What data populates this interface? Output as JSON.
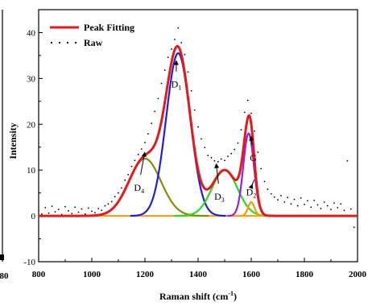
{
  "chart_data": {
    "type": "line",
    "xlabel": "Raman shift (cm",
    "xlabel_sup": "-1",
    "xlabel_close": ")",
    "ylabel": "Intensity",
    "xlim": [
      800,
      2000
    ],
    "ylim": [
      -10,
      45
    ],
    "xticks": [
      800,
      1000,
      1200,
      1400,
      1600,
      1800,
      2000
    ],
    "yticks": [
      -10,
      0,
      10,
      20,
      30,
      40
    ],
    "cut_left_label": "80",
    "legend": {
      "placement": "top-left",
      "items": [
        {
          "label": "Peak Fitting",
          "style": "line",
          "color": "#e31a1c"
        },
        {
          "label": "Raw",
          "style": "dots",
          "color": "#000000"
        }
      ]
    },
    "peaks": [
      {
        "name": "D4",
        "main": "D",
        "sub": "4",
        "center": 1200,
        "height": 12.5,
        "width": 60,
        "color": "#8a8a00"
      },
      {
        "name": "D1",
        "main": "D",
        "sub": "1",
        "center": 1325,
        "height": 35.5,
        "width": 45,
        "color": "#1f1fd6"
      },
      {
        "name": "D3",
        "main": "D",
        "sub": "3",
        "center": 1500,
        "height": 10,
        "width": 48,
        "color": "#22dd22"
      },
      {
        "name": "G",
        "main": "G",
        "sub": "",
        "center": 1590,
        "height": 18,
        "width": 20,
        "color": "#9b1fe0"
      },
      {
        "name": "D2",
        "main": "D",
        "sub": "2",
        "center": 1600,
        "height": 3,
        "width": 12,
        "color": "#ff9900"
      }
    ],
    "baseline": {
      "value": 0,
      "color": "#ff9900"
    },
    "raw_points": [
      [
        800,
        1.2
      ],
      [
        812,
        0.4
      ],
      [
        825,
        1.8
      ],
      [
        838,
        0.6
      ],
      [
        850,
        2.1
      ],
      [
        862,
        0.9
      ],
      [
        875,
        1.4
      ],
      [
        887,
        0.3
      ],
      [
        900,
        2.0
      ],
      [
        912,
        1.1
      ],
      [
        925,
        0.5
      ],
      [
        937,
        1.9
      ],
      [
        950,
        0.8
      ],
      [
        962,
        1.5
      ],
      [
        975,
        0.4
      ],
      [
        987,
        1.7
      ],
      [
        1000,
        1.0
      ],
      [
        1012,
        0.7
      ],
      [
        1025,
        1.6
      ],
      [
        1037,
        1.2
      ],
      [
        1050,
        2.2
      ],
      [
        1062,
        2.6
      ],
      [
        1075,
        3.1
      ],
      [
        1087,
        4.2
      ],
      [
        1100,
        5.0
      ],
      [
        1112,
        6.1
      ],
      [
        1125,
        7.8
      ],
      [
        1137,
        9.0
      ],
      [
        1150,
        10.8
      ],
      [
        1162,
        12.1
      ],
      [
        1175,
        13.4
      ],
      [
        1187,
        14.6
      ],
      [
        1200,
        16.0
      ],
      [
        1212,
        17.9
      ],
      [
        1225,
        20.2
      ],
      [
        1237,
        22.8
      ],
      [
        1250,
        25.6
      ],
      [
        1262,
        28.9
      ],
      [
        1275,
        31.8
      ],
      [
        1287,
        34.6
      ],
      [
        1300,
        36.4
      ],
      [
        1312,
        38.5
      ],
      [
        1325,
        41.0
      ],
      [
        1337,
        37.8
      ],
      [
        1350,
        35.2
      ],
      [
        1362,
        31.4
      ],
      [
        1375,
        27.3
      ],
      [
        1387,
        23.1
      ],
      [
        1400,
        19.4
      ],
      [
        1412,
        16.8
      ],
      [
        1425,
        14.9
      ],
      [
        1437,
        13.2
      ],
      [
        1450,
        12.7
      ],
      [
        1462,
        12.0
      ],
      [
        1475,
        11.8
      ],
      [
        1487,
        12.4
      ],
      [
        1500,
        12.1
      ],
      [
        1512,
        13.0
      ],
      [
        1525,
        13.6
      ],
      [
        1537,
        14.5
      ],
      [
        1550,
        15.9
      ],
      [
        1562,
        18.8
      ],
      [
        1575,
        22.6
      ],
      [
        1587,
        25.2
      ],
      [
        1600,
        22.4
      ],
      [
        1612,
        18.5
      ],
      [
        1625,
        13.9
      ],
      [
        1637,
        10.3
      ],
      [
        1650,
        7.5
      ],
      [
        1662,
        5.8
      ],
      [
        1675,
        4.8
      ],
      [
        1687,
        4.1
      ],
      [
        1700,
        3.5
      ],
      [
        1712,
        4.4
      ],
      [
        1725,
        3.0
      ],
      [
        1737,
        4.0
      ],
      [
        1750,
        2.6
      ],
      [
        1762,
        3.6
      ],
      [
        1775,
        2.2
      ],
      [
        1787,
        3.9
      ],
      [
        1800,
        2.5
      ],
      [
        1812,
        3.3
      ],
      [
        1825,
        1.9
      ],
      [
        1837,
        3.4
      ],
      [
        1850,
        2.4
      ],
      [
        1862,
        1.6
      ],
      [
        1875,
        3.0
      ],
      [
        1887,
        2.2
      ],
      [
        1900,
        1.4
      ],
      [
        1912,
        2.8
      ],
      [
        1925,
        1.8
      ],
      [
        1937,
        2.6
      ],
      [
        1950,
        1.2
      ],
      [
        1962,
        12.0
      ],
      [
        1975,
        1.5
      ],
      [
        1987,
        -2.5
      ],
      [
        2000,
        1.0
      ]
    ],
    "annotations": [
      {
        "peak": "D1",
        "text_x": 1318,
        "text_y": 28,
        "arrow_x": 1318,
        "arrow_y": 34
      },
      {
        "peak": "D4",
        "text_x": 1178,
        "text_y": 5.5,
        "arrow_x": 1200,
        "arrow_y": 14
      },
      {
        "peak": "D3",
        "text_x": 1480,
        "text_y": 3.5,
        "arrow_x": 1468,
        "arrow_y": 11.5
      },
      {
        "peak": "D2",
        "text_x": 1600,
        "text_y": 4.5,
        "arrow_x": 1605,
        "arrow_y": 7
      },
      {
        "peak": "G",
        "text_x": 1608,
        "text_y": 12,
        "arrow_x": 1598,
        "arrow_y": 17.5
      }
    ]
  }
}
